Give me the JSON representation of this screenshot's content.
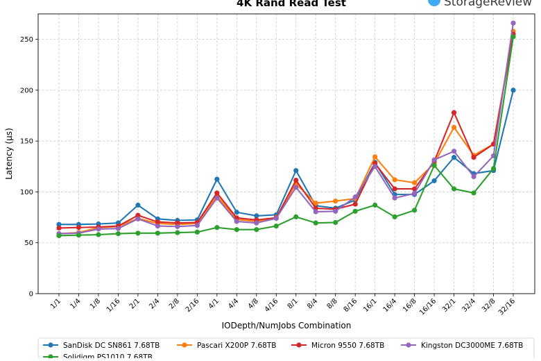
{
  "chart_data": {
    "type": "line",
    "title": "4K Rand Read Test",
    "xlabel": "IODepth/NumJobs Combination",
    "ylabel": "Latency (µs)",
    "ylim": [
      0,
      275
    ],
    "yticks": [
      0,
      50,
      100,
      150,
      200,
      250
    ],
    "grid": true,
    "legend_position": "bottom",
    "categories": [
      "1/1",
      "1/4",
      "1/8",
      "1/16",
      "2/1",
      "2/4",
      "2/8",
      "2/16",
      "4/1",
      "4/4",
      "4/8",
      "4/16",
      "8/1",
      "8/4",
      "8/8",
      "8/16",
      "16/1",
      "16/4",
      "16/8",
      "16/16",
      "32/1",
      "32/4",
      "32/8",
      "32/16"
    ],
    "series": [
      {
        "name": "SanDisk DC SN861 7.68TB",
        "color": "#1f77b4",
        "values": [
          68,
          68,
          68.5,
          69.5,
          87,
          73.5,
          72,
          72.5,
          112.5,
          80,
          76.5,
          77.5,
          121,
          86.5,
          84,
          92,
          129,
          97.5,
          97.5,
          111,
          134,
          118,
          121,
          200
        ]
      },
      {
        "name": "Pascari X200P 7.68TB",
        "color": "#ff7f0e",
        "values": [
          59,
          60,
          65,
          66,
          74,
          69,
          68,
          69,
          96,
          73,
          71,
          75,
          108,
          89,
          91,
          93.5,
          134.5,
          112,
          109,
          128,
          163.5,
          136,
          147,
          258
        ]
      },
      {
        "name": "Micron 9550 7.68TB",
        "color": "#d62728",
        "values": [
          64.5,
          65,
          65.5,
          66.5,
          77,
          70.5,
          69.5,
          70,
          99,
          74.5,
          72.5,
          74.5,
          111.5,
          84,
          83,
          88,
          128,
          103,
          103,
          130,
          178,
          134,
          147,
          255
        ]
      },
      {
        "name": "Kingston DC3000ME 7.68TB",
        "color": "#9467bd",
        "values": [
          59,
          59.5,
          63.5,
          64,
          73.5,
          66.5,
          66,
          67,
          94,
          71,
          69.5,
          74,
          104.5,
          80.5,
          81,
          95,
          125,
          94,
          98.5,
          131.5,
          140,
          115,
          135.5,
          266
        ]
      },
      {
        "name": "Solidigm PS1010 7.68TB",
        "color": "#2ca02c",
        "values": [
          57,
          57.5,
          58,
          59,
          59.5,
          59.5,
          60,
          60.5,
          65,
          63,
          63,
          66.5,
          75.5,
          69.5,
          70,
          81,
          87,
          75.5,
          82,
          126,
          103,
          99,
          123,
          252.5
        ]
      }
    ]
  },
  "brand": {
    "name": "StorageReview",
    "accent": "#3fa9f5"
  }
}
